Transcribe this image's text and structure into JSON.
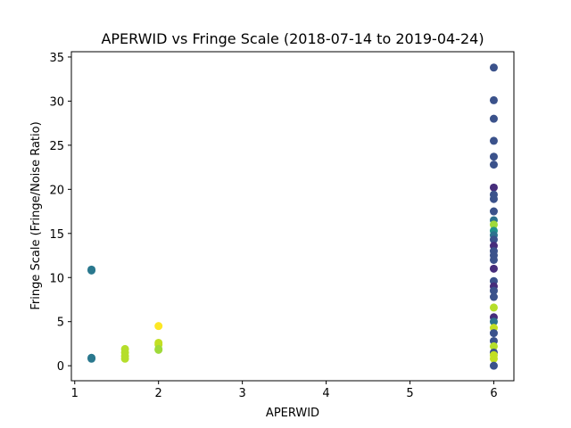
{
  "chart_data": {
    "type": "scatter",
    "title": "APERWID vs Fringe Scale (2018-07-14 to 2019-04-24)",
    "xlabel": "APERWID",
    "ylabel": "Fringe Scale (Fringe/Noise Ratio)",
    "xlim": [
      0.96,
      6.24
    ],
    "ylim": [
      -1.7,
      35.6
    ],
    "xticks": [
      1,
      2,
      3,
      4,
      5,
      6
    ],
    "yticks": [
      0,
      5,
      10,
      15,
      20,
      25,
      30,
      35
    ],
    "grid": false,
    "colormap": "viridis",
    "points": [
      {
        "x": 1.2,
        "y": 10.9,
        "color": "#2a788e"
      },
      {
        "x": 1.2,
        "y": 10.8,
        "color": "#2a788e"
      },
      {
        "x": 1.2,
        "y": 0.9,
        "color": "#2a788e"
      },
      {
        "x": 1.2,
        "y": 0.8,
        "color": "#2a788e"
      },
      {
        "x": 1.6,
        "y": 1.9,
        "color": "#b5de2b"
      },
      {
        "x": 1.6,
        "y": 1.5,
        "color": "#b5de2b"
      },
      {
        "x": 1.6,
        "y": 1.1,
        "color": "#b5de2b"
      },
      {
        "x": 1.6,
        "y": 0.8,
        "color": "#b5de2b"
      },
      {
        "x": 2.0,
        "y": 4.5,
        "color": "#fde725"
      },
      {
        "x": 2.0,
        "y": 2.6,
        "color": "#c2df23"
      },
      {
        "x": 2.0,
        "y": 2.4,
        "color": "#c2df23"
      },
      {
        "x": 2.0,
        "y": 1.9,
        "color": "#9fda3a"
      },
      {
        "x": 2.0,
        "y": 1.8,
        "color": "#9fda3a"
      },
      {
        "x": 6.0,
        "y": 33.8,
        "color": "#3b528b"
      },
      {
        "x": 6.0,
        "y": 30.1,
        "color": "#3b528b"
      },
      {
        "x": 6.0,
        "y": 28.0,
        "color": "#3b528b"
      },
      {
        "x": 6.0,
        "y": 25.5,
        "color": "#3b528b"
      },
      {
        "x": 6.0,
        "y": 23.7,
        "color": "#3b528b"
      },
      {
        "x": 6.0,
        "y": 22.8,
        "color": "#3b528b"
      },
      {
        "x": 6.0,
        "y": 20.2,
        "color": "#472d7b"
      },
      {
        "x": 6.0,
        "y": 19.4,
        "color": "#3b528b"
      },
      {
        "x": 6.0,
        "y": 18.9,
        "color": "#3b528b"
      },
      {
        "x": 6.0,
        "y": 17.5,
        "color": "#3b528b"
      },
      {
        "x": 6.0,
        "y": 16.5,
        "color": "#2c728e"
      },
      {
        "x": 6.0,
        "y": 16.0,
        "color": "#a0da39"
      },
      {
        "x": 6.0,
        "y": 15.3,
        "color": "#21918c"
      },
      {
        "x": 6.0,
        "y": 14.8,
        "color": "#2c728e"
      },
      {
        "x": 6.0,
        "y": 14.3,
        "color": "#3b528b"
      },
      {
        "x": 6.0,
        "y": 13.6,
        "color": "#472d7b"
      },
      {
        "x": 6.0,
        "y": 13.0,
        "color": "#3b528b"
      },
      {
        "x": 6.0,
        "y": 12.5,
        "color": "#3b528b"
      },
      {
        "x": 6.0,
        "y": 12.0,
        "color": "#3b528b"
      },
      {
        "x": 6.0,
        "y": 11.0,
        "color": "#472d7b"
      },
      {
        "x": 6.0,
        "y": 9.6,
        "color": "#3b528b"
      },
      {
        "x": 6.0,
        "y": 9.0,
        "color": "#472d7b"
      },
      {
        "x": 6.0,
        "y": 8.5,
        "color": "#3b528b"
      },
      {
        "x": 6.0,
        "y": 7.8,
        "color": "#3b528b"
      },
      {
        "x": 6.0,
        "y": 6.6,
        "color": "#b5de2b"
      },
      {
        "x": 6.0,
        "y": 5.5,
        "color": "#472d7b"
      },
      {
        "x": 6.0,
        "y": 5.0,
        "color": "#2c728e"
      },
      {
        "x": 6.0,
        "y": 4.3,
        "color": "#c2df23"
      },
      {
        "x": 6.0,
        "y": 3.7,
        "color": "#3b528b"
      },
      {
        "x": 6.0,
        "y": 2.8,
        "color": "#3b528b"
      },
      {
        "x": 6.0,
        "y": 2.2,
        "color": "#b5de2b"
      },
      {
        "x": 6.0,
        "y": 1.5,
        "color": "#3b528b"
      },
      {
        "x": 6.0,
        "y": 1.2,
        "color": "#c2df23"
      },
      {
        "x": 6.0,
        "y": 0.8,
        "color": "#c2df23"
      },
      {
        "x": 6.0,
        "y": 0.0,
        "color": "#3b528b"
      }
    ]
  }
}
